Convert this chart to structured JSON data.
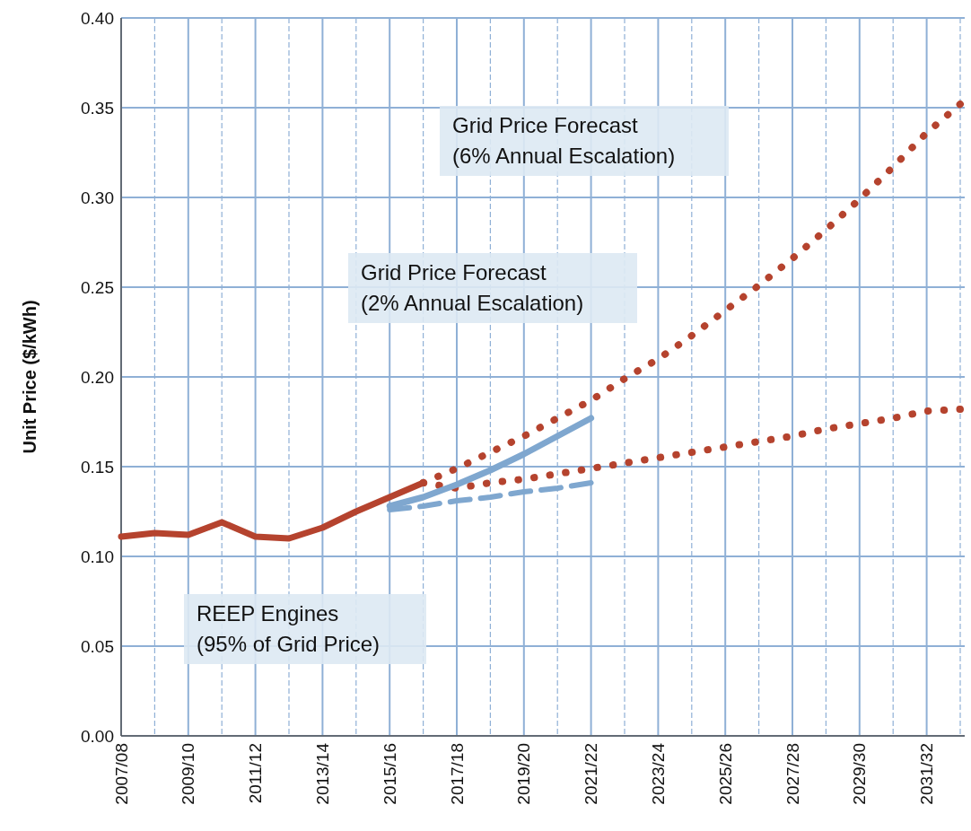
{
  "chart_data": {
    "type": "line",
    "ylabel": "Unit Price ($/kWh)",
    "categories": [
      "2007/08",
      null,
      "2009/10",
      null,
      "2011/12",
      null,
      "2013/14",
      null,
      "2015/16",
      null,
      "2017/18",
      null,
      "2019/20",
      null,
      "2021/22",
      null,
      "2023/24",
      null,
      "2025/26",
      null,
      "2027/28",
      null,
      "2029/30",
      null,
      "2031/32",
      null
    ],
    "series": [
      {
        "color": "#b5432e",
        "line_style": "solid",
        "values": [
          0.111,
          0.113,
          0.112,
          0.119,
          0.111,
          0.11,
          0.116,
          0.125,
          0.133,
          0.141,
          null,
          null,
          null,
          null,
          null,
          null,
          null,
          null,
          null,
          null,
          null,
          null,
          null,
          null,
          null,
          null
        ]
      },
      {
        "color": "#b5432e",
        "line_style": "dotted",
        "values": [
          null,
          null,
          null,
          null,
          null,
          null,
          null,
          null,
          null,
          0.141,
          0.149,
          0.158,
          0.167,
          0.177,
          0.187,
          0.199,
          0.21,
          0.223,
          0.237,
          0.251,
          0.266,
          0.282,
          0.299,
          0.317,
          0.336,
          0.352
        ]
      },
      {
        "color": "#b5432e",
        "line_style": "dotted",
        "values": [
          null,
          null,
          null,
          null,
          null,
          null,
          null,
          null,
          null,
          0.141,
          0.138,
          0.141,
          0.143,
          0.146,
          0.149,
          0.152,
          0.155,
          0.158,
          0.161,
          0.164,
          0.167,
          0.171,
          0.174,
          0.177,
          0.181,
          0.182
        ]
      },
      {
        "color": "#7fa7cf",
        "line_style": "solid",
        "values": [
          null,
          null,
          null,
          null,
          null,
          null,
          null,
          null,
          0.128,
          0.133,
          0.14,
          0.148,
          0.157,
          0.167,
          0.177,
          null,
          null,
          null,
          null,
          null,
          null,
          null,
          null,
          null,
          null,
          null
        ]
      },
      {
        "color": "#7fa7cf",
        "line_style": "dashed",
        "values": [
          null,
          null,
          null,
          null,
          null,
          null,
          null,
          null,
          0.126,
          0.128,
          0.131,
          0.133,
          0.136,
          0.138,
          0.141,
          null,
          null,
          null,
          null,
          null,
          null,
          null,
          null,
          null,
          null,
          null
        ]
      }
    ],
    "ylim": [
      0,
      0.4
    ],
    "yticks": [
      {
        "value": 0,
        "label": "0.00"
      },
      {
        "value": 0.05,
        "label": "0.05"
      },
      {
        "value": 0.1,
        "label": "0.10"
      },
      {
        "value": 0.15,
        "label": "0.15"
      },
      {
        "value": 0.2,
        "label": "0.20"
      },
      {
        "value": 0.25,
        "label": "0.25"
      },
      {
        "value": 0.3,
        "label": "0.30"
      },
      {
        "value": 0.35,
        "label": "0.35"
      },
      {
        "value": 0.4,
        "label": "0.40"
      }
    ],
    "grid": true,
    "marker": "none",
    "annotations": [
      "Grid Price Forecast\n(6% Annual Escalation)",
      "Grid Price Forecast\n(2% Annual Escalation)",
      "REEP Engines\n(95% of Grid Price)"
    ]
  }
}
